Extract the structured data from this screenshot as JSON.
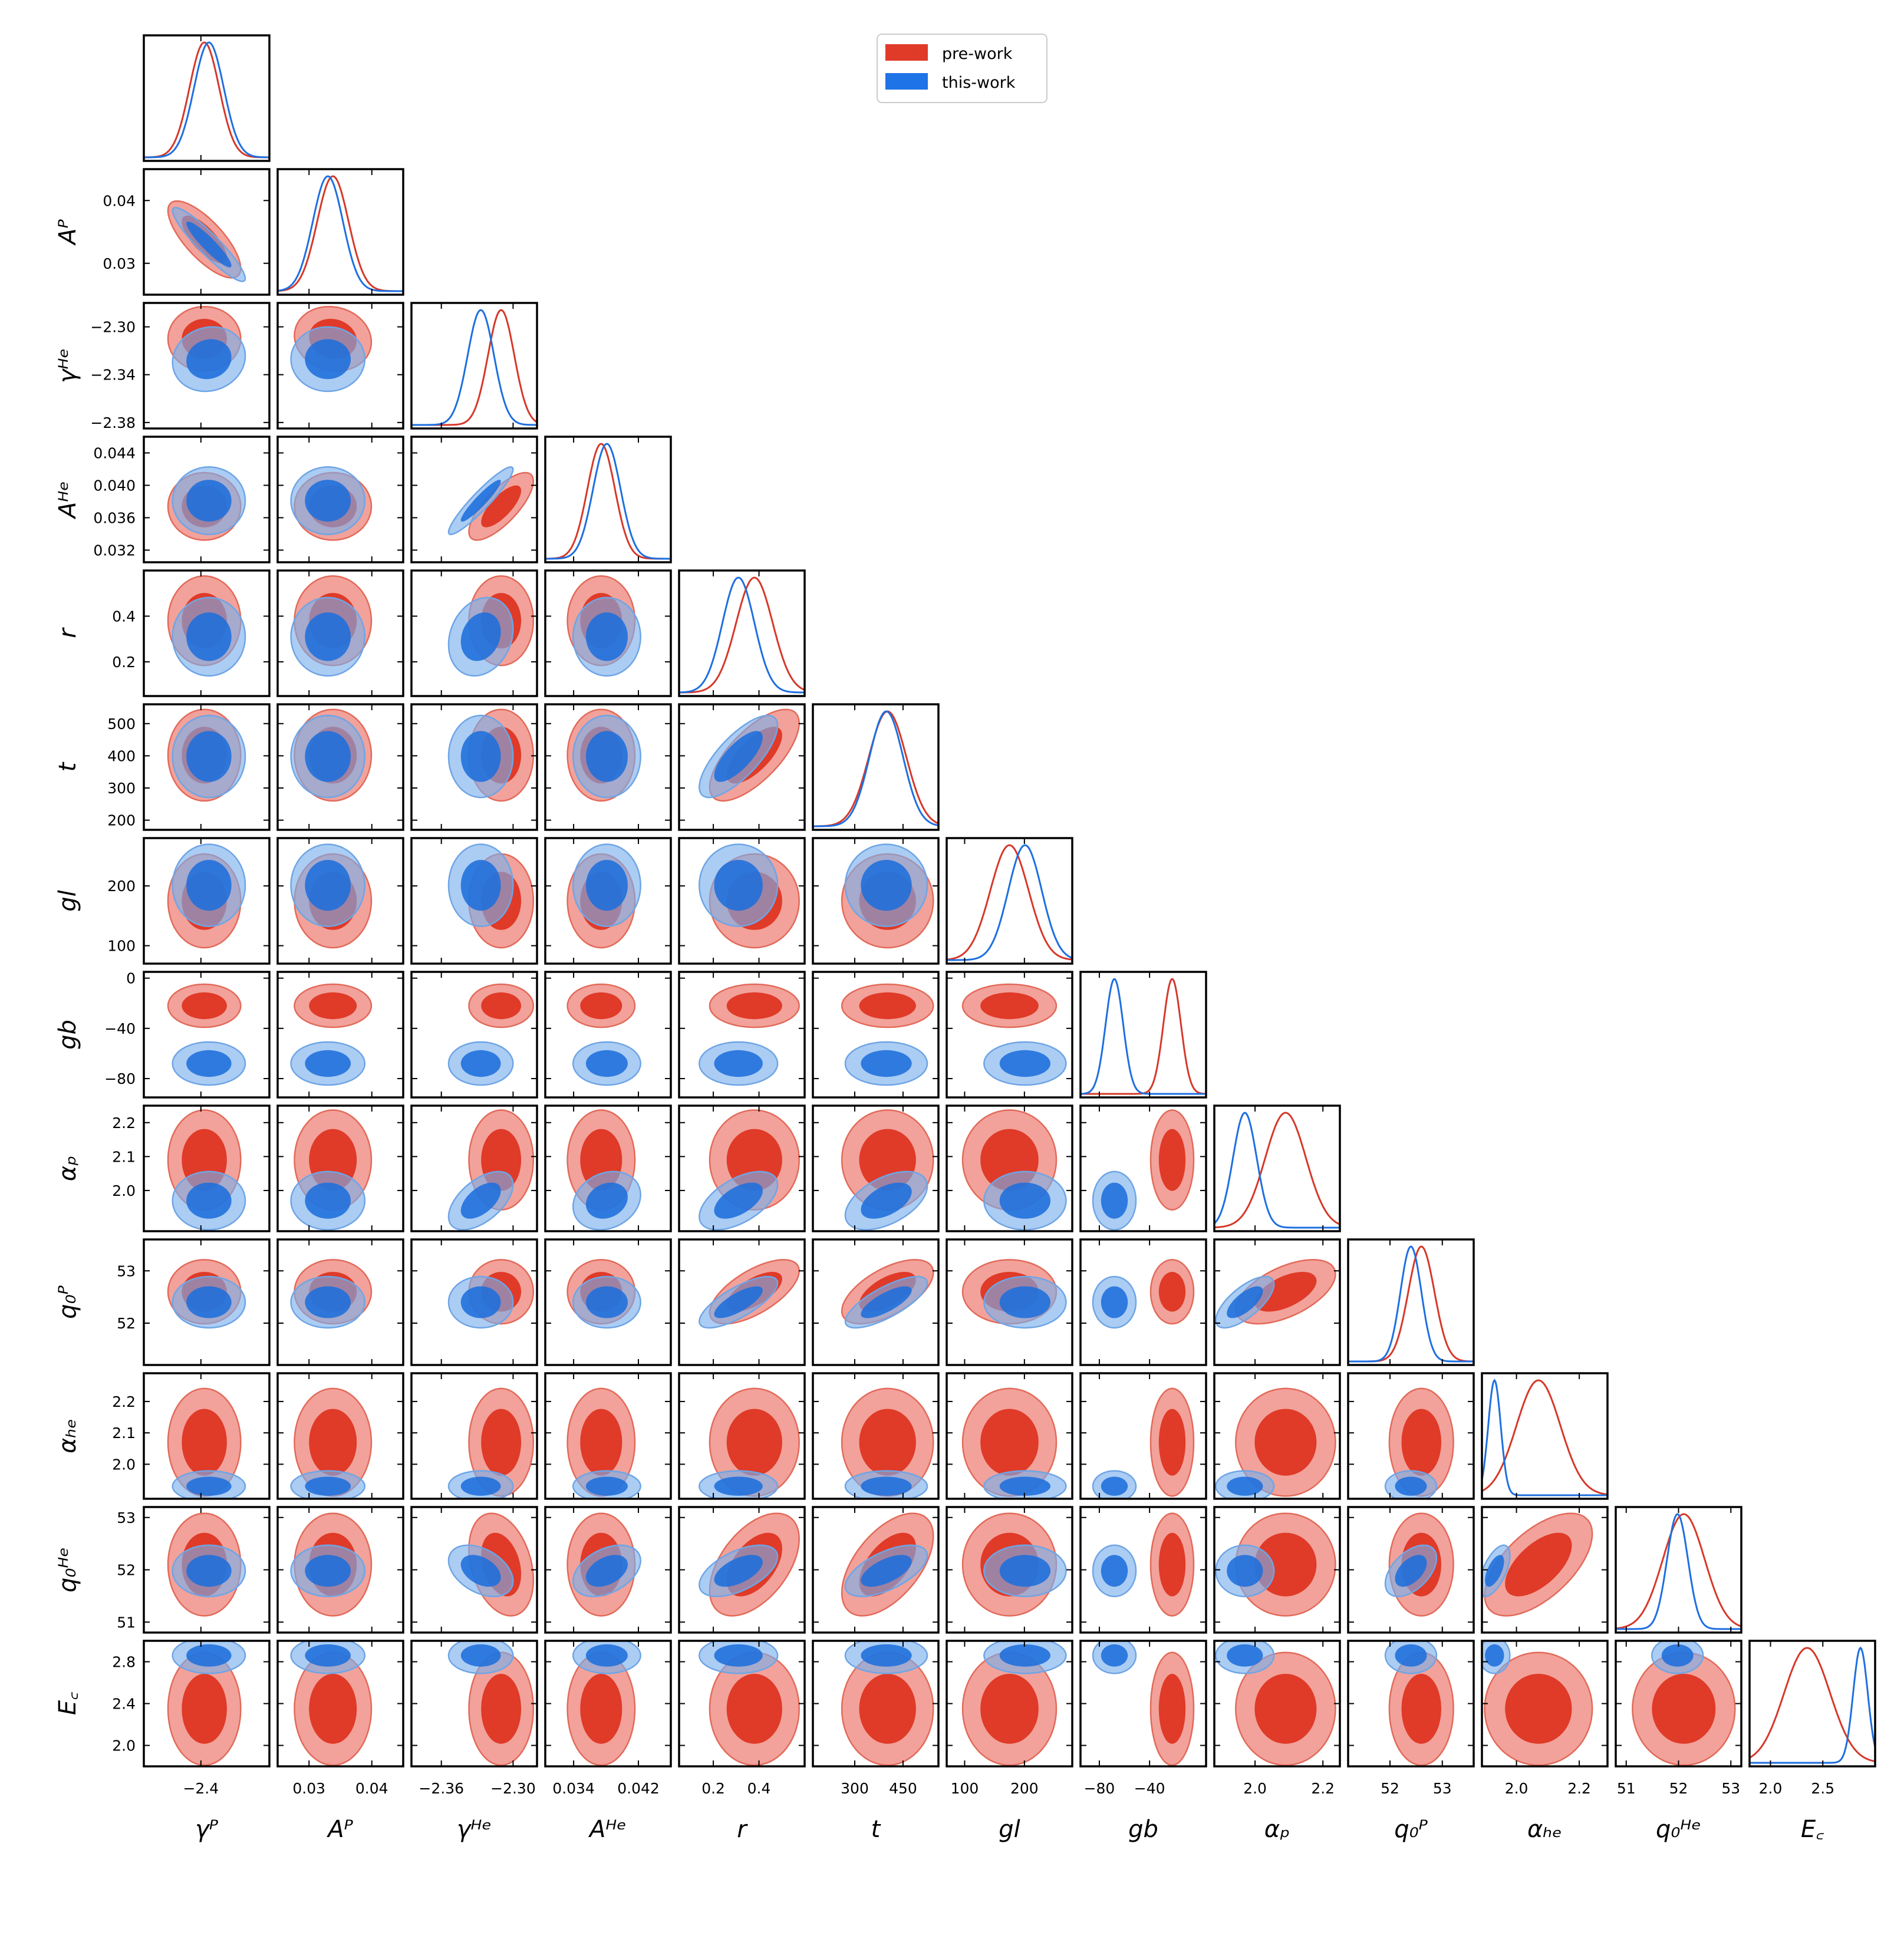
{
  "chart_data": {
    "type": "corner",
    "title": "",
    "legend": {
      "placement": "top-center",
      "entries": [
        {
          "name": "pre-work",
          "color": "#e03a28"
        },
        {
          "name": "this-work",
          "color": "#1e73e6"
        }
      ]
    },
    "colors": {
      "pre_dark": "#e03a28",
      "pre_light": "#f2a29a",
      "pre_edge": "#e26a5a",
      "this_dark": "#2b7de2",
      "this_light": "#a9cdf4",
      "this_edge": "#6fa5e5",
      "overlap_dark": "#2360c8"
    },
    "parameters": [
      {
        "key": "gammaP",
        "label": "γᴾ",
        "range": [
          -2.45,
          -2.34
        ],
        "ticks": [
          -2.4
        ],
        "tick_labels": [
          "−2.4"
        ],
        "pre": {
          "mean": -2.397,
          "sd": 0.013
        },
        "this": {
          "mean": -2.393,
          "sd": 0.013
        }
      },
      {
        "key": "AP",
        "label": "Aᴾ",
        "range": [
          0.025,
          0.045
        ],
        "ticks": [
          0.03,
          0.04
        ],
        "tick_labels": [
          "0.03",
          "0.04"
        ],
        "pre": {
          "mean": 0.0338,
          "sd": 0.0025
        },
        "this": {
          "mean": 0.033,
          "sd": 0.0024
        }
      },
      {
        "key": "gammaHe",
        "label": "γᴴᵉ",
        "range": [
          -2.385,
          -2.28
        ],
        "ticks": [
          -2.36,
          -2.3
        ],
        "tick_labels": [
          "−2.36",
          "−2.30"
        ],
        "pre": {
          "mean": -2.31,
          "sd": 0.011
        },
        "this": {
          "mean": -2.327,
          "sd": 0.011
        }
      },
      {
        "key": "AHe",
        "label": "Aᴴᵉ",
        "range": [
          0.0305,
          0.046
        ],
        "ticks": [
          0.034,
          0.042
        ],
        "tick_labels": [
          "0.034",
          "0.042"
        ],
        "pre": {
          "mean": 0.0374,
          "sd": 0.0017
        },
        "this": {
          "mean": 0.0381,
          "sd": 0.0017
        }
      },
      {
        "key": "r",
        "label": "r",
        "range": [
          0.05,
          0.6
        ],
        "ticks": [
          0.2,
          0.4
        ],
        "tick_labels": [
          "0.2",
          "0.4"
        ],
        "pre": {
          "mean": 0.38,
          "sd": 0.08
        },
        "this": {
          "mean": 0.31,
          "sd": 0.07
        }
      },
      {
        "key": "t",
        "label": "t",
        "range": [
          170,
          560
        ],
        "ticks": [
          300,
          450
        ],
        "tick_labels": [
          "300",
          "450"
        ],
        "pre": {
          "mean": 402,
          "sd": 58
        },
        "this": {
          "mean": 398,
          "sd": 52
        }
      },
      {
        "key": "gl",
        "label": "gl",
        "range": [
          70,
          280
        ],
        "ticks": [
          100,
          200
        ],
        "tick_labels": [
          "100",
          "200"
        ],
        "pre": {
          "mean": 175,
          "sd": 32
        },
        "this": {
          "mean": 201,
          "sd": 28
        }
      },
      {
        "key": "gb",
        "label": "gb",
        "range": [
          -95,
          5
        ],
        "ticks": [
          -80,
          -40
        ],
        "tick_labels": [
          "−80",
          "−40"
        ],
        "pre": {
          "mean": -22,
          "sd": 7
        },
        "this": {
          "mean": -68,
          "sd": 7
        }
      },
      {
        "key": "alphaP",
        "label": "αₚ",
        "range": [
          1.88,
          2.25
        ],
        "ticks": [
          2.0,
          2.2
        ],
        "tick_labels": [
          "2.0",
          "2.2"
        ],
        "pre": {
          "mean": 2.09,
          "sd": 0.06
        },
        "this": {
          "mean": 1.97,
          "sd": 0.035
        }
      },
      {
        "key": "q0P",
        "label": "q₀ᴾ",
        "range": [
          51.2,
          53.6
        ],
        "ticks": [
          52,
          53
        ],
        "tick_labels": [
          "52",
          "53"
        ],
        "pre": {
          "mean": 52.6,
          "sd": 0.25
        },
        "this": {
          "mean": 52.4,
          "sd": 0.2
        }
      },
      {
        "key": "alphaHe",
        "label": "αₕₑ",
        "range": [
          1.89,
          2.29
        ],
        "ticks": [
          2.0,
          2.2
        ],
        "tick_labels": [
          "2.0",
          "2.2"
        ],
        "pre": {
          "mean": 2.07,
          "sd": 0.07
        },
        "this": {
          "mean": 1.93,
          "sd": 0.02
        }
      },
      {
        "key": "q0He",
        "label": "q₀ᴴᵉ",
        "range": [
          50.8,
          53.2
        ],
        "ticks": [
          51,
          52,
          53
        ],
        "tick_labels": [
          "51",
          "52",
          "53"
        ],
        "pre": {
          "mean": 52.1,
          "sd": 0.4
        },
        "this": {
          "mean": 51.98,
          "sd": 0.2
        }
      },
      {
        "key": "Ec",
        "label": "E꜀",
        "range": [
          1.8,
          3.0
        ],
        "ticks": [
          2.0,
          2.5
        ],
        "tick_labels": [
          "2.0",
          "2.5"
        ],
        "pre": {
          "mean": 2.35,
          "sd": 0.22
        },
        "this": {
          "mean": 2.86,
          "sd": 0.07
        }
      }
    ],
    "y_tick_labels": {
      "AP": [
        [
          "0.04",
          0.04
        ],
        [
          "0.03",
          0.03
        ]
      ],
      "gammaHe": [
        [
          "−2.30",
          -2.3
        ],
        [
          "−2.34",
          -2.34
        ],
        [
          "−2.38",
          -2.38
        ]
      ],
      "AHe": [
        [
          "0.044",
          0.044
        ],
        [
          "0.040",
          0.04
        ],
        [
          "0.036",
          0.036
        ],
        [
          "0.032",
          0.032
        ]
      ],
      "r": [
        [
          "0.4",
          0.4
        ],
        [
          "0.2",
          0.2
        ]
      ],
      "t": [
        [
          "500",
          500
        ],
        [
          "400",
          400
        ],
        [
          "300",
          300
        ],
        [
          "200",
          200
        ]
      ],
      "gl": [
        [
          "200",
          200
        ],
        [
          "100",
          100
        ]
      ],
      "gb": [
        [
          "0",
          0
        ],
        [
          "−40",
          -40
        ],
        [
          "−80",
          -80
        ]
      ],
      "alphaP": [
        [
          "2.2",
          2.2
        ],
        [
          "2.1",
          2.1
        ],
        [
          "2.0",
          2.0
        ]
      ],
      "q0P": [
        [
          "53",
          53
        ],
        [
          "52",
          52
        ]
      ],
      "alphaHe": [
        [
          "2.2",
          2.2
        ],
        [
          "2.1",
          2.1
        ],
        [
          "2.0",
          2.0
        ]
      ],
      "q0He": [
        [
          "53",
          53
        ],
        [
          "52",
          52
        ],
        [
          "51",
          51
        ]
      ],
      "Ec": [
        [
          "2.8",
          2.8
        ],
        [
          "2.4",
          2.4
        ],
        [
          "2.0",
          2.0
        ]
      ]
    },
    "correlations": {
      "pre": {
        "0-1": -0.75,
        "2-3": 0.75,
        "4-5": 0.7,
        "4-9": 0.65,
        "5-9": 0.6,
        "4-11": 0.5,
        "5-11": 0.55,
        "8-9": 0.55,
        "10-11": 0.6,
        "2-11": -0.3,
        "1-2": -0.1
      },
      "this": {
        "0-1": -0.92,
        "2-3": 0.93,
        "4-5": 0.75,
        "2-8": 0.55,
        "4-8": 0.55,
        "5-8": 0.5,
        "3-8": 0.2,
        "4-9": 0.75,
        "5-9": 0.75,
        "8-9": 0.7,
        "4-11": 0.55,
        "5-11": 0.6,
        "9-11": 0.5,
        "10-11": 0.6,
        "2-11": -0.4,
        "3-11": 0.4,
        "0-2": 0.1,
        "2-4": 0.2
      }
    }
  }
}
